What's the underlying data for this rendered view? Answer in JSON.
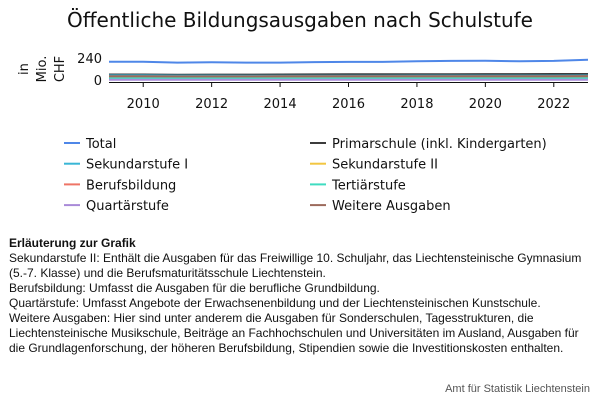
{
  "chart_data": {
    "type": "line",
    "title": "Öffentliche Bildungsausgaben nach Schulstufe",
    "ylabel_lines": [
      "in",
      "Mio.",
      "CHF"
    ],
    "y_ticks": [
      0,
      240
    ],
    "ylim": [
      0,
      240
    ],
    "xlim": [
      2009,
      2023
    ],
    "x_ticks": [
      2010,
      2012,
      2014,
      2016,
      2018,
      2020,
      2022
    ],
    "x": [
      2009,
      2010,
      2011,
      2012,
      2013,
      2014,
      2015,
      2016,
      2017,
      2018,
      2019,
      2020,
      2021,
      2022,
      2023
    ],
    "grid": false,
    "legend_position": "bottom",
    "series": [
      {
        "name": "Total",
        "color": "#4f87e8",
        "values": [
          200,
          200,
          190,
          193,
          190,
          190,
          195,
          197,
          197,
          205,
          208,
          210,
          205,
          208,
          220
        ]
      },
      {
        "name": "Primarschule (inkl. Kindergarten)",
        "color": "#3c3c3c",
        "values": [
          60,
          60,
          58,
          59,
          59,
          60,
          61,
          62,
          62,
          63,
          63,
          64,
          64,
          65,
          66
        ]
      },
      {
        "name": "Sekundarstufe I",
        "color": "#39b6d6",
        "values": [
          50,
          50,
          48,
          48,
          47,
          46,
          47,
          47,
          47,
          48,
          48,
          48,
          48,
          48,
          49
        ]
      },
      {
        "name": "Sekundarstufe II",
        "color": "#f2c641",
        "values": [
          22,
          22,
          22,
          22,
          22,
          22,
          22,
          23,
          23,
          23,
          23,
          23,
          23,
          23,
          24
        ]
      },
      {
        "name": "Berufsbildung",
        "color": "#ee7466",
        "values": [
          24,
          24,
          23,
          23,
          23,
          23,
          23,
          23,
          23,
          24,
          24,
          24,
          24,
          24,
          25
        ]
      },
      {
        "name": "Tertiärstufe",
        "color": "#3fdcc0",
        "values": [
          18,
          18,
          17,
          17,
          17,
          17,
          17,
          18,
          18,
          18,
          18,
          19,
          19,
          19,
          20
        ]
      },
      {
        "name": "Quartärstufe",
        "color": "#a98ad8",
        "values": [
          3,
          3,
          3,
          3,
          3,
          3,
          3,
          3,
          3,
          3,
          3,
          3,
          3,
          3,
          3
        ]
      },
      {
        "name": "Weitere Ausgaben",
        "color": "#9c6a5c",
        "values": [
          40,
          40,
          39,
          39,
          39,
          40,
          40,
          40,
          41,
          41,
          41,
          42,
          42,
          42,
          43
        ]
      }
    ]
  },
  "notes": {
    "heading": "Erläuterung zur Grafik",
    "lines": [
      "Sekundarstufe II: Enthält die Ausgaben für das Freiwillige 10. Schuljahr, das Liechtensteinische Gymnasium (5.-7. Klasse) und die Berufsmaturitätsschule Liechtenstein.",
      "Berufsbildung: Umfasst die Ausgaben für die berufliche Grundbildung.",
      "Quartärstufe: Umfasst Angebote der Erwachsenenbildung und der Liechtensteinischen Kunstschule.",
      "Weitere Ausgaben: Hier sind unter anderem die Ausgaben für Sonderschulen, Tagesstrukturen, die Liechtensteinische Musikschule, Beiträge an Fachhochschulen und Universitäten im Ausland, Ausgaben für die Grundlagenforschung, der höheren Berufsbildung, Stipendien sowie die Investitionskosten enthalten."
    ]
  },
  "source": "Amt für Statistik Liechtenstein"
}
